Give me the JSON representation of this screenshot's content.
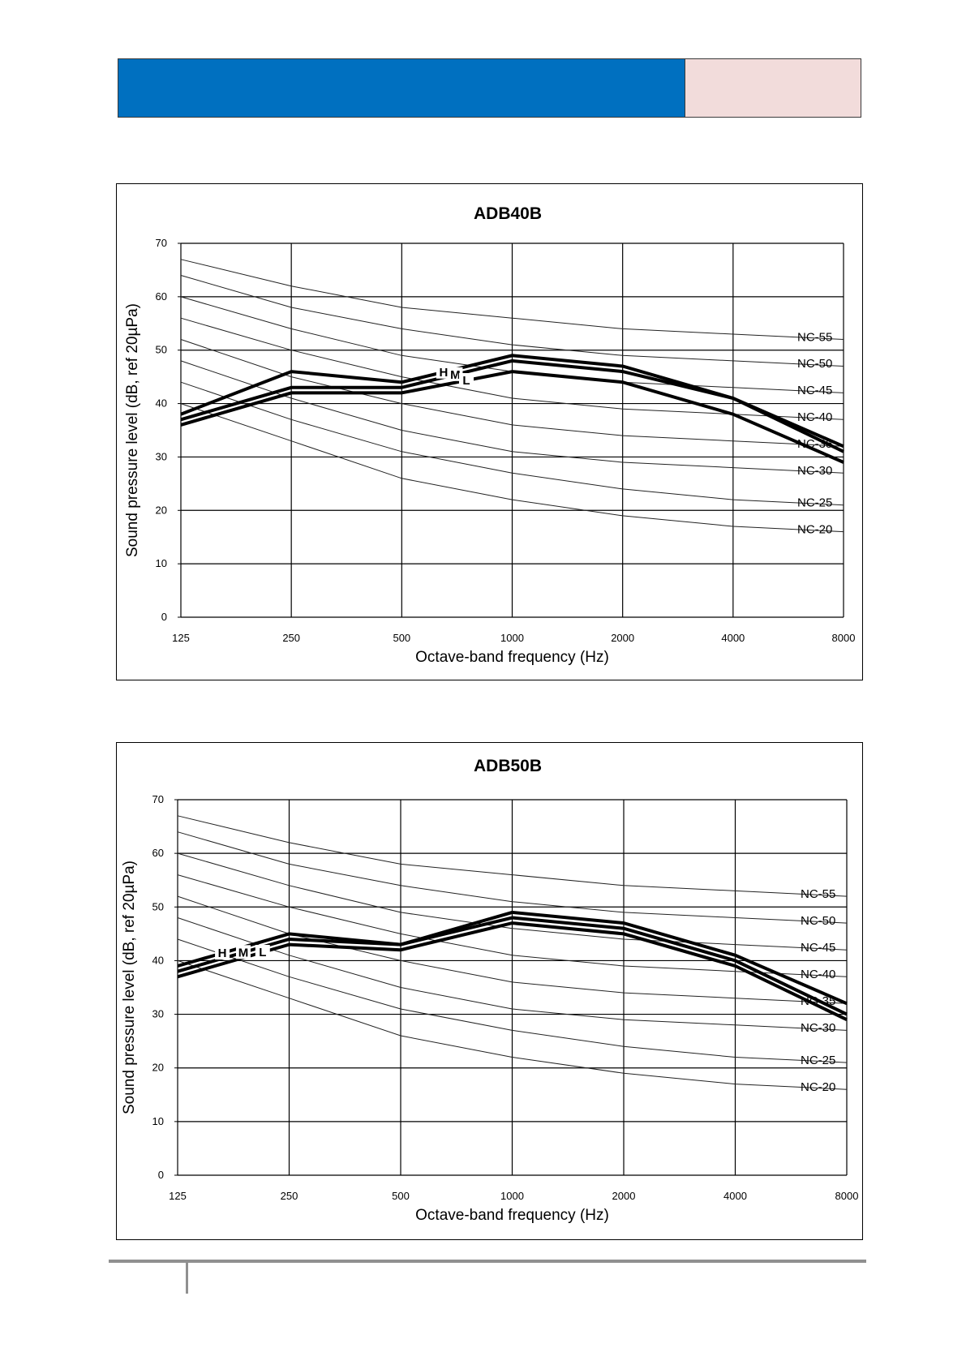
{
  "header": {
    "primary_color": "#0070c0",
    "secondary_color": "#f2dcdb"
  },
  "chart_data": [
    {
      "type": "line",
      "title": "ADB40B",
      "xlabel": "Octave-band frequency (Hz)",
      "ylabel": "Sound pressure  level (dB, ref 20µPa)",
      "x_scale": "log2",
      "x": [
        125,
        250,
        500,
        1000,
        2000,
        4000,
        8000
      ],
      "x_tick_labels": [
        "125",
        "250",
        "500",
        "1000",
        "2000",
        "4000",
        "8000"
      ],
      "ylim": [
        0,
        70
      ],
      "y_ticks": [
        0,
        10,
        20,
        30,
        40,
        50,
        60,
        70
      ],
      "grid": true,
      "nc_curves": [
        {
          "name": "NC-55",
          "values": [
            67,
            62,
            58,
            56,
            54,
            53,
            52
          ]
        },
        {
          "name": "NC-50",
          "values": [
            64,
            58,
            54,
            51,
            49,
            48,
            47
          ]
        },
        {
          "name": "NC-45",
          "values": [
            60,
            54,
            49,
            46,
            44,
            43,
            42
          ]
        },
        {
          "name": "NC-40",
          "values": [
            56,
            50,
            45,
            41,
            39,
            38,
            37
          ]
        },
        {
          "name": "NC-35",
          "values": [
            52,
            45,
            40,
            36,
            34,
            33,
            32
          ]
        },
        {
          "name": "NC-30",
          "values": [
            48,
            41,
            35,
            31,
            29,
            28,
            27
          ]
        },
        {
          "name": "NC-25",
          "values": [
            44,
            37,
            31,
            27,
            24,
            22,
            21
          ]
        },
        {
          "name": "NC-20",
          "values": [
            40,
            33,
            26,
            22,
            19,
            17,
            16
          ]
        }
      ],
      "series": [
        {
          "name": "H",
          "values": [
            38,
            46,
            44,
            49,
            47,
            41,
            31
          ]
        },
        {
          "name": "M",
          "values": [
            37,
            43,
            43,
            48,
            46,
            41,
            32
          ]
        },
        {
          "name": "L",
          "values": [
            36,
            42,
            42,
            46,
            44,
            38,
            29
          ]
        }
      ],
      "series_label_x": [
        650,
        700,
        750
      ]
    },
    {
      "type": "line",
      "title": "ADB50B",
      "xlabel": "Octave-band frequency (Hz)",
      "ylabel": "Sound pressure  level (dB, ref 20µPa)",
      "x_scale": "log2",
      "x": [
        125,
        250,
        500,
        1000,
        2000,
        4000,
        8000
      ],
      "x_tick_labels": [
        "125",
        "250",
        "500",
        "1000",
        "2000",
        "4000",
        "8000"
      ],
      "ylim": [
        0,
        70
      ],
      "y_ticks": [
        0,
        10,
        20,
        30,
        40,
        50,
        60,
        70
      ],
      "grid": true,
      "nc_curves": [
        {
          "name": "NC-55",
          "values": [
            67,
            62,
            58,
            56,
            54,
            53,
            52
          ]
        },
        {
          "name": "NC-50",
          "values": [
            64,
            58,
            54,
            51,
            49,
            48,
            47
          ]
        },
        {
          "name": "NC-45",
          "values": [
            60,
            54,
            49,
            46,
            44,
            43,
            42
          ]
        },
        {
          "name": "NC-40",
          "values": [
            56,
            50,
            45,
            41,
            39,
            38,
            37
          ]
        },
        {
          "name": "NC-35",
          "values": [
            52,
            45,
            40,
            36,
            34,
            33,
            32
          ]
        },
        {
          "name": "NC-30",
          "values": [
            48,
            41,
            35,
            31,
            29,
            28,
            27
          ]
        },
        {
          "name": "NC-25",
          "values": [
            44,
            37,
            31,
            27,
            24,
            22,
            21
          ]
        },
        {
          "name": "NC-20",
          "values": [
            40,
            33,
            26,
            22,
            19,
            17,
            16
          ]
        }
      ],
      "series": [
        {
          "name": "H",
          "values": [
            39,
            45,
            43,
            49,
            47,
            41,
            32
          ]
        },
        {
          "name": "M",
          "values": [
            38,
            44,
            43,
            48,
            46,
            40,
            30
          ]
        },
        {
          "name": "L",
          "values": [
            37,
            43,
            42,
            47,
            45,
            39,
            29
          ]
        }
      ],
      "series_label_x": [
        165,
        188,
        212
      ]
    }
  ]
}
